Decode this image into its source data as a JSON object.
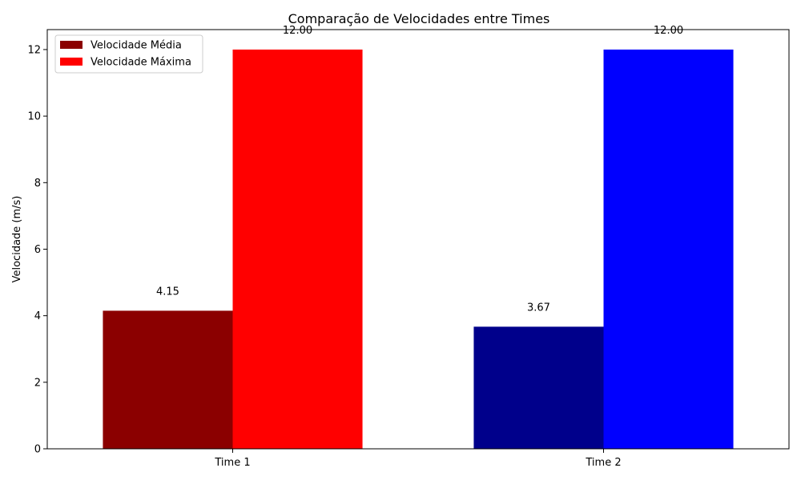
{
  "chart_data": {
    "type": "bar",
    "title": "Comparação de Velocidades entre Times",
    "xlabel": "",
    "ylabel": "Velocidade (m/s)",
    "categories": [
      "Time 1",
      "Time 2"
    ],
    "series": [
      {
        "name": "Velocidade Média",
        "values": [
          4.15,
          3.67
        ],
        "colors": [
          "#8b0000",
          "#00008b"
        ]
      },
      {
        "name": "Velocidade Máxima",
        "values": [
          12.0,
          12.0
        ],
        "colors": [
          "#ff0000",
          "#0000ff"
        ]
      }
    ],
    "data_labels": [
      [
        "4.15",
        "3.67"
      ],
      [
        "12.00",
        "12.00"
      ]
    ],
    "yticks": [
      "0",
      "2",
      "4",
      "6",
      "8",
      "10",
      "12"
    ],
    "ylim": [
      0,
      12.6
    ],
    "grid": false,
    "legend_position": "top-left"
  }
}
